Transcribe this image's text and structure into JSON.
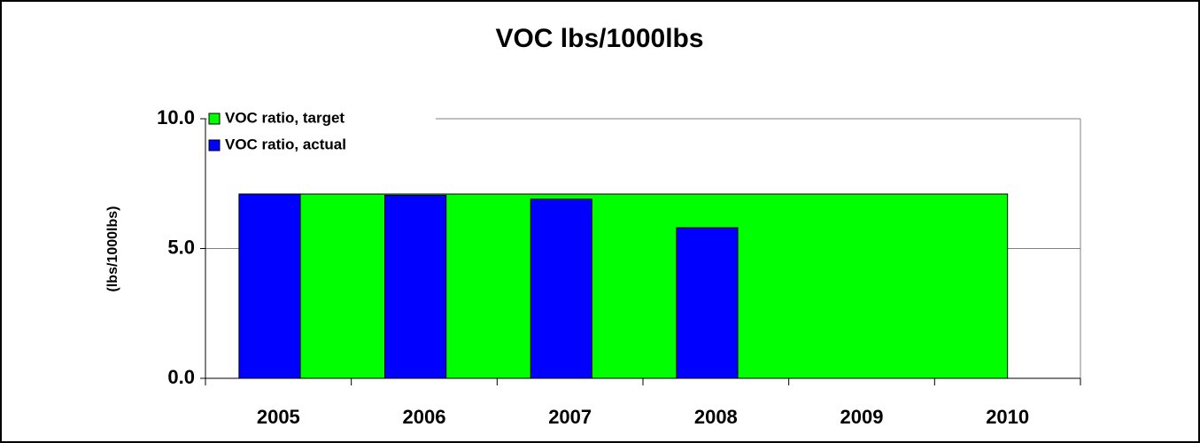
{
  "chart_data": {
    "type": "bar_area",
    "title": "VOC lbs/1000lbs",
    "y_label": "(lbs/1000lbs)",
    "categories": [
      "2005",
      "2006",
      "2007",
      "2008",
      "2009",
      "2010"
    ],
    "series": [
      {
        "name": "VOC ratio, target",
        "color": "#00ff00",
        "kind": "area",
        "values": [
          7.1,
          7.1,
          7.1,
          7.1,
          7.1,
          7.1
        ]
      },
      {
        "name": "VOC ratio, actual",
        "color": "#0000ff",
        "kind": "bar",
        "values": [
          7.1,
          7.05,
          6.9,
          5.8,
          null,
          null
        ]
      }
    ],
    "ylim": [
      0,
      10
    ],
    "yticks": [
      {
        "value": 0,
        "label": "0.0"
      },
      {
        "value": 5,
        "label": "5.0"
      },
      {
        "value": 10,
        "label": "10.0"
      }
    ],
    "grid": true,
    "legend": "top-left"
  }
}
